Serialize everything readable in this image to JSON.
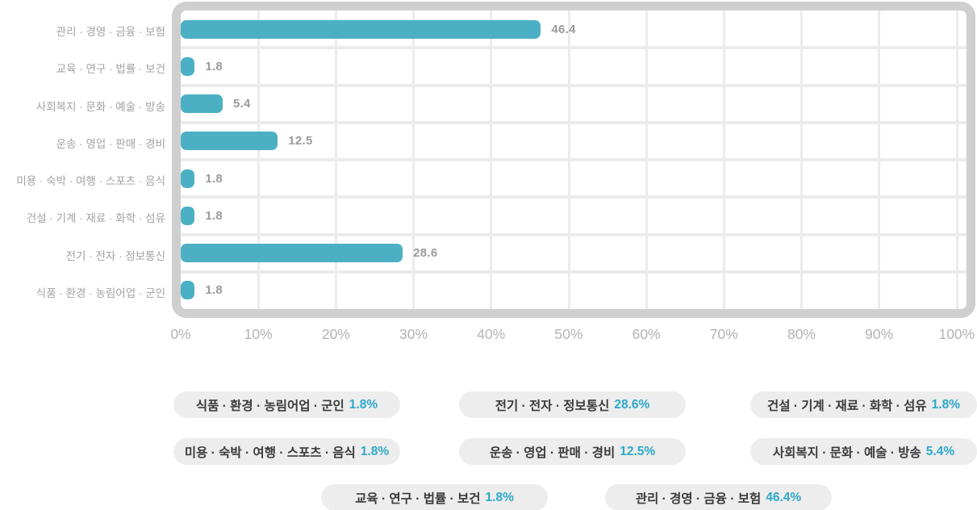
{
  "colors": {
    "bar": "#4bb0c4",
    "grid": "#ececec",
    "frame": "#cfcfcf",
    "value": "#9b9b9b",
    "category": "#a2a2a2",
    "tick": "#b3b3b3",
    "pill_bg": "#ededed",
    "pill_text": "#3a3a3a",
    "pill_value": "#2ca9c9"
  },
  "chart_data": {
    "type": "bar",
    "orientation": "horizontal",
    "categories": [
      "관리 · 경영 · 금융 · 보험",
      "교육 · 연구 · 법률 · 보건",
      "사회복지 · 문화 · 예술 · 방송",
      "운송 · 영업 · 판매 · 경비",
      "미용 · 숙박 · 여행 · 스포츠 · 음식",
      "건설 · 기계 · 재료 · 화학 · 섬유",
      "전기 · 전자 · 정보통신",
      "식품 · 환경 · 농림어업 · 군인"
    ],
    "values": [
      46.4,
      1.8,
      5.4,
      12.5,
      1.8,
      1.8,
      28.6,
      1.8
    ],
    "xlim": [
      0,
      100
    ],
    "x_ticks": [
      "0%",
      "10%",
      "20%",
      "30%",
      "40%",
      "50%",
      "60%",
      "70%",
      "80%",
      "90%",
      "100%"
    ],
    "grid": true,
    "legend_position": "bottom"
  },
  "legend_pills": {
    "rows": [
      [
        {
          "label": "식품 · 환경 · 농림어업 · 군인",
          "value": "1.8%"
        },
        {
          "label": "전기 · 전자 · 정보통신",
          "value": "28.6%"
        },
        {
          "label": "건설 · 기계 · 재료 · 화학 · 섬유",
          "value": "1.8%"
        }
      ],
      [
        {
          "label": "미용 · 숙박 · 여행 · 스포츠 · 음식",
          "value": "1.8%"
        },
        {
          "label": "운송 · 영업 · 판매 · 경비",
          "value": "12.5%"
        },
        {
          "label": "사회복지 · 문화 · 예술 · 방송",
          "value": "5.4%"
        }
      ],
      [
        {
          "label": "교육 · 연구 · 법률 · 보건",
          "value": "1.8%"
        },
        {
          "label": "관리 · 경영 · 금융 · 보험",
          "value": "46.4%"
        }
      ]
    ]
  }
}
